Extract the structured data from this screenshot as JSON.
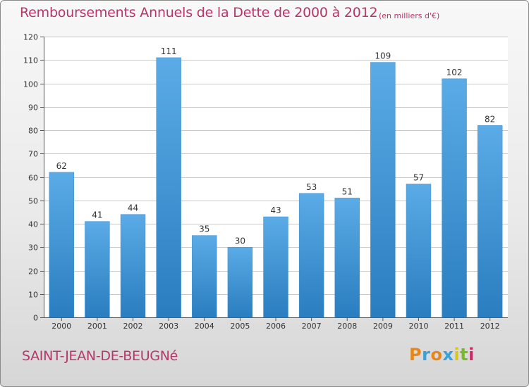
{
  "header": {
    "title": "Remboursements Annuels de la Dette de 2000 à 2012",
    "subtitle": "(en milliers d'€)"
  },
  "footer": {
    "commune": "SAINT-JEAN-DE-BEUGNé",
    "logo_text": "Proxiti",
    "logo_letter_colors": [
      "#e8861a",
      "#3aa0d8",
      "#e8861a",
      "#3aa0d8",
      "#d8c81a",
      "#7ab828",
      "#d0286a"
    ]
  },
  "colors": {
    "bar_light": "#5aabe6",
    "bar_dark": "#2a7dbf",
    "grid": "#c8c8c8",
    "axis_text": "#333333",
    "accent": "#b5376a"
  },
  "chart_data": {
    "type": "bar",
    "title": "Remboursements Annuels de la Dette de 2000 à 2012",
    "subtitle": "(en milliers d'€)",
    "categories": [
      "2000",
      "2001",
      "2002",
      "2003",
      "2004",
      "2005",
      "2006",
      "2007",
      "2008",
      "2009",
      "2010",
      "2011",
      "2012"
    ],
    "values": [
      62,
      41,
      44,
      111,
      35,
      30,
      43,
      53,
      51,
      109,
      57,
      102,
      82
    ],
    "ylim": [
      0,
      120
    ],
    "yticks": [
      0,
      10,
      20,
      30,
      40,
      50,
      60,
      70,
      80,
      90,
      100,
      110,
      120
    ],
    "grid": true,
    "legend": "none",
    "data_labels": true
  }
}
